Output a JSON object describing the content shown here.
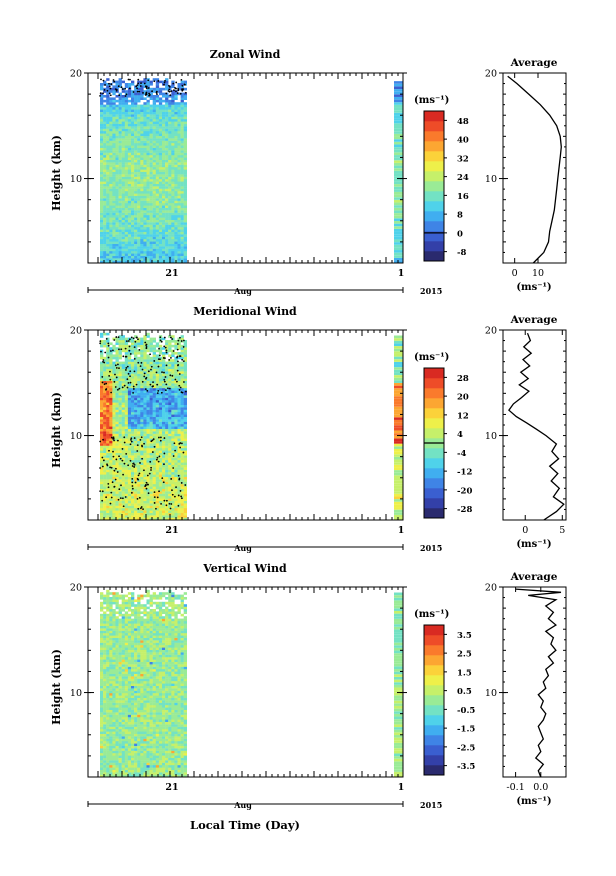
{
  "chart_data": [
    {
      "type": "heatmap",
      "title": "Zonal Wind",
      "ylabel": "Height (km)",
      "ylim": [
        2,
        20
      ],
      "yticks": [
        "20",
        "10"
      ],
      "xtick": "21",
      "xtick_right": "1",
      "month": "Aug",
      "year": "2015",
      "unit": "(ms⁻¹)",
      "colorbar_ticks": [
        "48",
        "40",
        "32",
        "24",
        "16",
        "8",
        "0",
        "-8"
      ],
      "colorbar_range": [
        -12,
        52
      ],
      "colorbar_colors": [
        "#2a2a6e",
        "#3340a8",
        "#3a5fd0",
        "#3f84e6",
        "#40aef0",
        "#4fd2ea",
        "#73e2c4",
        "#9aeb96",
        "#c6f06a",
        "#eef04a",
        "#fbd23a",
        "#fca632",
        "#fa7a2c",
        "#ee4c28",
        "#d92a22"
      ],
      "zero_contour": 0,
      "profile": {
        "title": "Average",
        "xlim": [
          -5,
          22
        ],
        "xticks": [
          "0",
          "10"
        ],
        "xtick_values": [
          0,
          10
        ],
        "unit": "(ms⁻¹)",
        "heights": [
          2,
          3,
          4,
          5,
          6,
          7,
          8,
          9,
          10,
          11,
          12,
          13,
          14,
          15,
          16,
          17,
          18,
          19,
          19.7
        ],
        "values": [
          8,
          12.5,
          14.5,
          15,
          16,
          17,
          17.5,
          18,
          18.5,
          19,
          19.5,
          20,
          19.5,
          18,
          15,
          11,
          6,
          1,
          -3
        ]
      }
    },
    {
      "type": "heatmap",
      "title": "Meridional Wind",
      "ylabel": "Height (km)",
      "ylim": [
        2,
        20
      ],
      "yticks": [
        "20",
        "10"
      ],
      "xtick": "21",
      "xtick_right": "1",
      "month": "Aug",
      "year": "2015",
      "unit": "(ms⁻¹)",
      "colorbar_ticks": [
        "28",
        "20",
        "12",
        "4",
        "-4",
        "-12",
        "-20",
        "-28"
      ],
      "colorbar_range": [
        -32,
        32
      ],
      "colorbar_colors": [
        "#2a2a6e",
        "#3340a8",
        "#3a5fd0",
        "#3f84e6",
        "#40aef0",
        "#4fd2ea",
        "#73e2c4",
        "#9aeb96",
        "#c6f06a",
        "#eef04a",
        "#fbd23a",
        "#fca632",
        "#fa7a2c",
        "#ee4c28",
        "#d92a22"
      ],
      "zero_contour": 0,
      "profile": {
        "title": "Average",
        "xlim": [
          -3,
          5.5
        ],
        "xticks": [
          "0",
          "5"
        ],
        "xtick_values": [
          0,
          5
        ],
        "unit": "(ms⁻¹)",
        "heights": [
          2,
          2.8,
          3.5,
          4.2,
          5,
          5.7,
          6.4,
          7.1,
          7.8,
          8.5,
          9.2,
          10,
          10.6,
          11.2,
          11.8,
          12.4,
          13,
          13.6,
          14.2,
          14.8,
          15.4,
          16,
          16.6,
          17.2,
          17.8,
          18.4,
          19,
          19.7
        ],
        "values": [
          2.5,
          4.2,
          5.2,
          3.8,
          4.6,
          3.5,
          4.4,
          3.3,
          4.5,
          3.6,
          4.2,
          2.8,
          1.5,
          0.2,
          -1.2,
          -2.2,
          -1.6,
          -0.5,
          0.5,
          -0.8,
          0.4,
          -0.6,
          0.6,
          -0.3,
          0.8,
          -0.2,
          0.7,
          0.3
        ]
      }
    },
    {
      "type": "heatmap",
      "title": "Vertical Wind",
      "ylabel": "Height (km)",
      "xlabel": "Local Time (Day)",
      "ylim": [
        2,
        20
      ],
      "yticks": [
        "20",
        "10"
      ],
      "xtick": "21",
      "xtick_right": "1",
      "month": "Aug",
      "year": "2015",
      "unit": "(ms⁻¹)",
      "colorbar_ticks": [
        "3.5",
        "2.5",
        "1.5",
        "0.5",
        "-0.5",
        "-1.5",
        "-2.5",
        "-3.5"
      ],
      "colorbar_range": [
        -4,
        4
      ],
      "colorbar_colors": [
        "#2a2a6e",
        "#3340a8",
        "#3a5fd0",
        "#3f84e6",
        "#40aef0",
        "#4fd2ea",
        "#73e2c4",
        "#9aeb96",
        "#c6f06a",
        "#eef04a",
        "#fbd23a",
        "#fca632",
        "#fa7a2c",
        "#ee4c28",
        "#d92a22"
      ],
      "zero_contour": null,
      "profile": {
        "title": "Average",
        "xlim": [
          -0.15,
          0.1
        ],
        "xticks": [
          "-0.1",
          "0.0"
        ],
        "xtick_values": [
          -0.1,
          0.0
        ],
        "unit": "(ms⁻¹)",
        "heights": [
          2,
          2.6,
          3.2,
          3.8,
          4.4,
          5,
          5.6,
          6.2,
          6.8,
          7.4,
          8,
          8.6,
          9.2,
          9.8,
          10.4,
          11,
          11.6,
          12.2,
          12.8,
          13.4,
          14,
          14.6,
          15.2,
          15.8,
          16.4,
          17,
          17.6,
          18.2,
          18.8,
          19.2,
          19.5,
          19.8
        ],
        "values": [
          0.0,
          -0.01,
          0.01,
          -0.02,
          0.0,
          -0.01,
          0.01,
          0.0,
          -0.01,
          0.01,
          0.02,
          0.0,
          0.01,
          -0.01,
          0.02,
          0.01,
          0.03,
          0.02,
          0.05,
          0.03,
          0.06,
          0.04,
          0.05,
          0.02,
          0.06,
          0.03,
          0.05,
          0.02,
          0.06,
          -0.05,
          0.08,
          -0.1
        ]
      }
    }
  ]
}
